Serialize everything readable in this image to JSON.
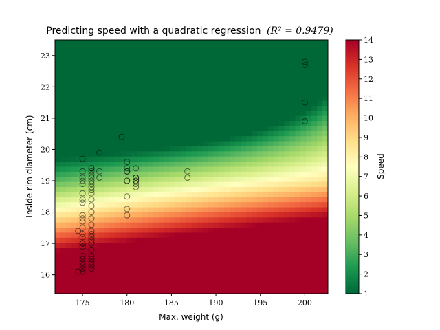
{
  "chart_data": {
    "type": "heatmap",
    "title": "Predicting speed with a quadratic regression",
    "title_formula": "(R² = 0.9479)",
    "xlabel": "Max. weight (g)",
    "ylabel": "Inside rim diameter (cm)",
    "xlim": [
      171.9,
      202.6
    ],
    "ylim": [
      15.4,
      23.5
    ],
    "x_ticks": [
      175,
      180,
      185,
      190,
      195,
      200
    ],
    "y_ticks": [
      16,
      17,
      18,
      19,
      20,
      21,
      22,
      23
    ],
    "colorbar": {
      "label": "Speed",
      "min": 1,
      "max": 14,
      "ticks": [
        1,
        2,
        3,
        4,
        5,
        6,
        7,
        8,
        9,
        10,
        11,
        12,
        13,
        14
      ],
      "colormap": "RdYlGn_r",
      "stops": [
        "#006837",
        "#1a9850",
        "#66bd63",
        "#a6d96a",
        "#d9ef8b",
        "#ffffbf",
        "#fee08b",
        "#fdae61",
        "#f46d43",
        "#d73027",
        "#a50026"
      ]
    },
    "scatter": {
      "x": [
        174.5,
        175,
        175,
        175,
        175,
        175,
        175,
        175,
        175,
        175,
        175,
        175,
        175,
        175,
        175,
        175,
        175,
        175,
        175,
        175,
        175,
        175,
        175,
        175,
        176,
        176,
        176,
        176,
        176,
        176,
        176,
        176,
        176,
        176,
        176,
        176,
        176,
        176,
        176,
        176,
        176,
        176,
        176,
        176,
        176,
        176,
        176,
        176,
        176,
        176,
        176.9,
        176.9,
        176.9,
        174.5,
        179.4,
        180,
        180,
        180,
        180,
        180,
        180,
        180,
        180,
        180,
        181,
        181,
        181,
        181,
        181,
        181,
        181,
        186.8,
        186.8,
        200,
        200,
        200,
        200
      ],
      "y": [
        16.1,
        16.1,
        16.2,
        16.3,
        16.4,
        16.5,
        16.6,
        16.9,
        17.0,
        17.2,
        17.3,
        17.5,
        17.7,
        17.8,
        17.9,
        18.3,
        18.4,
        18.6,
        18.9,
        19.0,
        19.1,
        19.3,
        19.7,
        17.0,
        16.2,
        16.3,
        16.4,
        16.5,
        16.6,
        16.8,
        17.0,
        17.1,
        17.2,
        17.3,
        17.4,
        17.6,
        17.8,
        18.0,
        18.2,
        18.4,
        18.6,
        18.7,
        18.8,
        18.9,
        19.0,
        19.1,
        19.2,
        19.3,
        19.4,
        19.4,
        19.1,
        19.3,
        19.9,
        17.4,
        20.4,
        17.9,
        18.1,
        18.5,
        19.0,
        19.0,
        19.3,
        19.3,
        19.4,
        19.6,
        18.8,
        18.9,
        19.0,
        19.0,
        19.1,
        19.1,
        19.4,
        19.1,
        19.3,
        20.9,
        21.5,
        22.7,
        22.8
      ]
    },
    "grid": false,
    "legend": "none"
  }
}
